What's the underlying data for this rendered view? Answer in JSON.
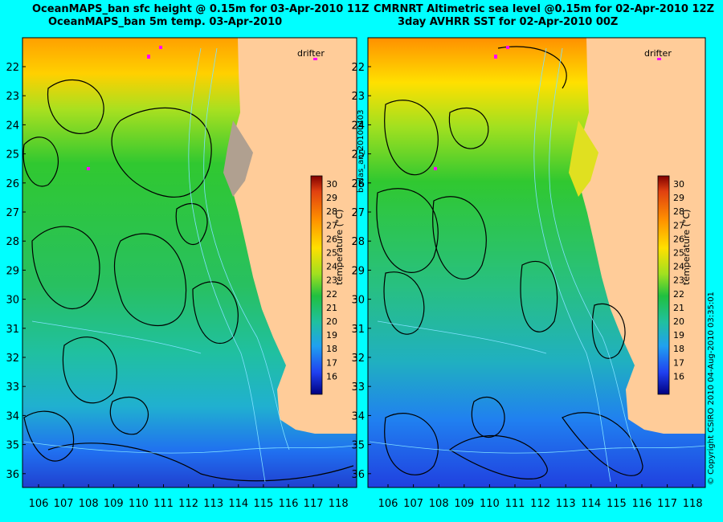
{
  "left_panel": {
    "title_line1": "OceanMAPS_ban sfc height @ 0.15m for 03-Apr-2010 11Z",
    "title_line2": "OceanMAPS_ban 5m temp. 03-Apr-2010",
    "drifter_label": "drifter"
  },
  "right_panel": {
    "title_line1": "CMRNRT Altimetric sea level  @0.15m  for 02-Apr-2010 12Z",
    "title_line2": "3day AVHRR SST for 02-Apr-2010 00Z",
    "drifter_label": "drifter"
  },
  "side_label": "bodas_an_20100403",
  "copyright": "© Copyright CSIRO 2010    04-Aug-2010 03:35:01",
  "colorbar": {
    "title": "temperature (°C)",
    "ticks": [
      "30",
      "29",
      "28",
      "27",
      "26",
      "25",
      "24",
      "23",
      "22",
      "21",
      "20",
      "19",
      "18",
      "17",
      "16"
    ],
    "range": [
      15.5,
      30.5
    ]
  },
  "axes": {
    "lon_ticks": [
      "106",
      "107",
      "108",
      "109",
      "110",
      "111",
      "112",
      "113",
      "114",
      "115",
      "116",
      "117",
      "118"
    ],
    "lat_ticks": [
      "22",
      "23",
      "24",
      "25",
      "26",
      "27",
      "28",
      "29",
      "30",
      "31",
      "32",
      "33",
      "34",
      "35",
      "36"
    ]
  },
  "colors": {
    "background": "#00ffff",
    "land": "#ffcc99",
    "contour": "#000000",
    "isobath": "#7fe0ff",
    "drifter": "#ff00ff"
  }
}
